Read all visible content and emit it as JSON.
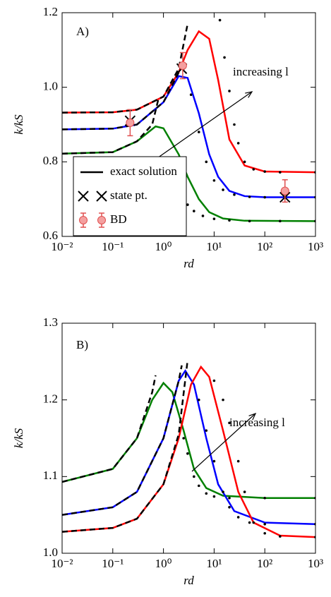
{
  "chart_data": [
    {
      "type": "line",
      "xscale": "log",
      "xlabel": "rd",
      "ylabel": "k/kS",
      "xlim": [
        0.01,
        1000
      ],
      "ylim": [
        0.6,
        1.2
      ],
      "xticks": [
        {
          "value": 0.01,
          "label": "10⁻²"
        },
        {
          "value": 0.1,
          "label": "10⁻¹"
        },
        {
          "value": 1,
          "label": "10⁰"
        },
        {
          "value": 10,
          "label": "10¹"
        },
        {
          "value": 100,
          "label": "10²"
        },
        {
          "value": 1000,
          "label": "10³"
        }
      ],
      "yticks": [
        0.6,
        0.8,
        {
          "value": 1,
          "label": "1.0"
        },
        1.2
      ],
      "annotations": [
        "A)",
        "increasing l"
      ],
      "legend": [
        {
          "name": "exact solution",
          "marker": "line",
          "color": "#000000"
        },
        {
          "name": "state pt.",
          "marker": "x",
          "color": "#000000"
        },
        {
          "name": "BD",
          "marker": "errorbar",
          "color": "#e05050"
        }
      ],
      "series": [
        {
          "style": "solid",
          "color": "#ff0000",
          "x": [
            0.01,
            0.1,
            0.3,
            1,
            2,
            3,
            5,
            8,
            12,
            20,
            40,
            100,
            1000
          ],
          "values": [
            0.932,
            0.933,
            0.94,
            0.975,
            1.04,
            1.1,
            1.15,
            1.13,
            1.02,
            0.86,
            0.79,
            0.774,
            0.772
          ]
        },
        {
          "style": "solid",
          "color": "#0000ff",
          "x": [
            0.01,
            0.1,
            0.3,
            1,
            2,
            3,
            5,
            8,
            12,
            20,
            40,
            100,
            1000
          ],
          "values": [
            0.887,
            0.889,
            0.9,
            0.96,
            1.03,
            1.025,
            0.93,
            0.82,
            0.76,
            0.722,
            0.708,
            0.705,
            0.705
          ]
        },
        {
          "style": "solid",
          "color": "#008000",
          "x": [
            0.01,
            0.1,
            0.3,
            0.7,
            1,
            2,
            3,
            5,
            8,
            15,
            40,
            1000
          ],
          "values": [
            0.822,
            0.826,
            0.855,
            0.895,
            0.89,
            0.82,
            0.76,
            0.7,
            0.665,
            0.648,
            0.642,
            0.641
          ]
        },
        {
          "style": "dashed",
          "color": "#000000",
          "x": [
            0.01,
            0.1,
            0.3,
            1,
            2,
            3
          ],
          "values": [
            0.932,
            0.933,
            0.94,
            0.975,
            1.05,
            1.17
          ]
        },
        {
          "style": "dashed",
          "color": "#000000",
          "x": [
            0.01,
            0.1,
            0.3,
            1,
            2,
            2.5
          ],
          "values": [
            0.887,
            0.889,
            0.9,
            0.96,
            1.04,
            1.07
          ]
        },
        {
          "style": "dashed",
          "color": "#000000",
          "x": [
            0.01,
            0.1,
            0.3,
            0.6,
            0.8
          ],
          "values": [
            0.822,
            0.826,
            0.855,
            0.9,
            0.97
          ]
        },
        {
          "style": "dotted",
          "color": "#000000",
          "x": [
            13,
            16,
            20,
            25,
            30,
            40,
            60,
            100,
            200,
            1000
          ],
          "values": [
            1.18,
            1.08,
            0.99,
            0.9,
            0.85,
            0.8,
            0.78,
            0.774,
            0.772,
            0.772
          ]
        },
        {
          "style": "dotted",
          "color": "#000000",
          "x": [
            2.5,
            3.5,
            5,
            7,
            10,
            15,
            25,
            50,
            100,
            1000
          ],
          "values": [
            1.05,
            0.98,
            0.88,
            0.8,
            0.75,
            0.725,
            0.712,
            0.706,
            0.705,
            0.705
          ]
        },
        {
          "style": "dotted",
          "color": "#000000",
          "x": [
            1.5,
            2,
            3,
            4,
            6,
            10,
            20,
            50,
            200,
            1000
          ],
          "values": [
            0.76,
            0.72,
            0.685,
            0.668,
            0.655,
            0.647,
            0.643,
            0.641,
            0.641,
            0.641
          ]
        },
        {
          "style": "x",
          "color": "#000000",
          "x": [
            0.22,
            2.3,
            250
          ],
          "values": [
            0.91,
            1.05,
            0.705
          ]
        },
        {
          "style": "errorbar",
          "color": "#e05050",
          "x": [
            0.22,
            2.4,
            250
          ],
          "values": [
            0.905,
            1.058,
            0.722
          ],
          "errors": [
            0.035,
            0.035,
            0.03
          ]
        }
      ]
    },
    {
      "type": "line",
      "xscale": "log",
      "xlabel": "rd",
      "ylabel": "k/kS",
      "xlim": [
        0.01,
        1000
      ],
      "ylim": [
        1.0,
        1.3
      ],
      "xticks": [
        {
          "value": 0.01,
          "label": "10⁻²"
        },
        {
          "value": 0.1,
          "label": "10⁻¹"
        },
        {
          "value": 1,
          "label": "10⁰"
        },
        {
          "value": 10,
          "label": "10¹"
        },
        {
          "value": 100,
          "label": "10²"
        },
        {
          "value": 1000,
          "label": "10³"
        }
      ],
      "yticks": [
        {
          "value": 1,
          "label": "1.0"
        },
        1.1,
        1.2,
        1.3
      ],
      "annotations": [
        "B)",
        "increasing l"
      ],
      "series": [
        {
          "style": "solid",
          "color": "#008000",
          "x": [
            0.01,
            0.1,
            0.3,
            0.6,
            1,
            1.5,
            2.5,
            4,
            7,
            15,
            100,
            1000
          ],
          "values": [
            1.093,
            1.11,
            1.15,
            1.2,
            1.222,
            1.21,
            1.16,
            1.11,
            1.085,
            1.075,
            1.072,
            1.072
          ]
        },
        {
          "style": "solid",
          "color": "#0000ff",
          "x": [
            0.01,
            0.1,
            0.3,
            1,
            2,
            2.7,
            4,
            7,
            12,
            25,
            100,
            1000
          ],
          "values": [
            1.05,
            1.06,
            1.08,
            1.15,
            1.225,
            1.238,
            1.22,
            1.15,
            1.09,
            1.055,
            1.04,
            1.038
          ]
        },
        {
          "style": "solid",
          "color": "#ff0000",
          "x": [
            0.01,
            0.1,
            0.3,
            1,
            2,
            3.5,
            5.5,
            8,
            15,
            30,
            60,
            200,
            1000
          ],
          "values": [
            1.028,
            1.033,
            1.045,
            1.09,
            1.15,
            1.22,
            1.243,
            1.23,
            1.16,
            1.08,
            1.04,
            1.023,
            1.021
          ]
        },
        {
          "style": "dashed",
          "color": "#000000",
          "x": [
            0.01,
            0.1,
            0.3,
            0.6,
            0.7
          ],
          "values": [
            1.093,
            1.11,
            1.15,
            1.21,
            1.232
          ]
        },
        {
          "style": "dashed",
          "color": "#000000",
          "x": [
            0.01,
            0.1,
            0.3,
            1,
            2,
            2.3
          ],
          "values": [
            1.05,
            1.06,
            1.08,
            1.15,
            1.225,
            1.245
          ]
        },
        {
          "style": "dashed",
          "color": "#000000",
          "x": [
            0.01,
            0.1,
            0.3,
            1,
            2,
            3
          ],
          "values": [
            1.028,
            1.033,
            1.045,
            1.09,
            1.155,
            1.252
          ]
        },
        {
          "style": "dotted",
          "color": "#000000",
          "x": [
            2.5,
            3,
            4,
            5,
            7,
            10,
            20,
            100,
            1000
          ],
          "values": [
            1.15,
            1.13,
            1.1,
            1.088,
            1.078,
            1.074,
            1.072,
            1.072,
            1.072
          ]
        },
        {
          "style": "dotted",
          "color": "#000000",
          "x": [
            5,
            7,
            10,
            15,
            20,
            30,
            50,
            100,
            1000
          ],
          "values": [
            1.2,
            1.16,
            1.12,
            1.08,
            1.06,
            1.047,
            1.04,
            1.038,
            1.038
          ]
        },
        {
          "style": "dotted",
          "color": "#000000",
          "x": [
            10,
            15,
            20,
            30,
            40,
            60,
            100,
            200,
            1000
          ],
          "values": [
            1.225,
            1.2,
            1.17,
            1.12,
            1.08,
            1.04,
            1.026,
            1.022,
            1.021
          ]
        }
      ]
    }
  ]
}
